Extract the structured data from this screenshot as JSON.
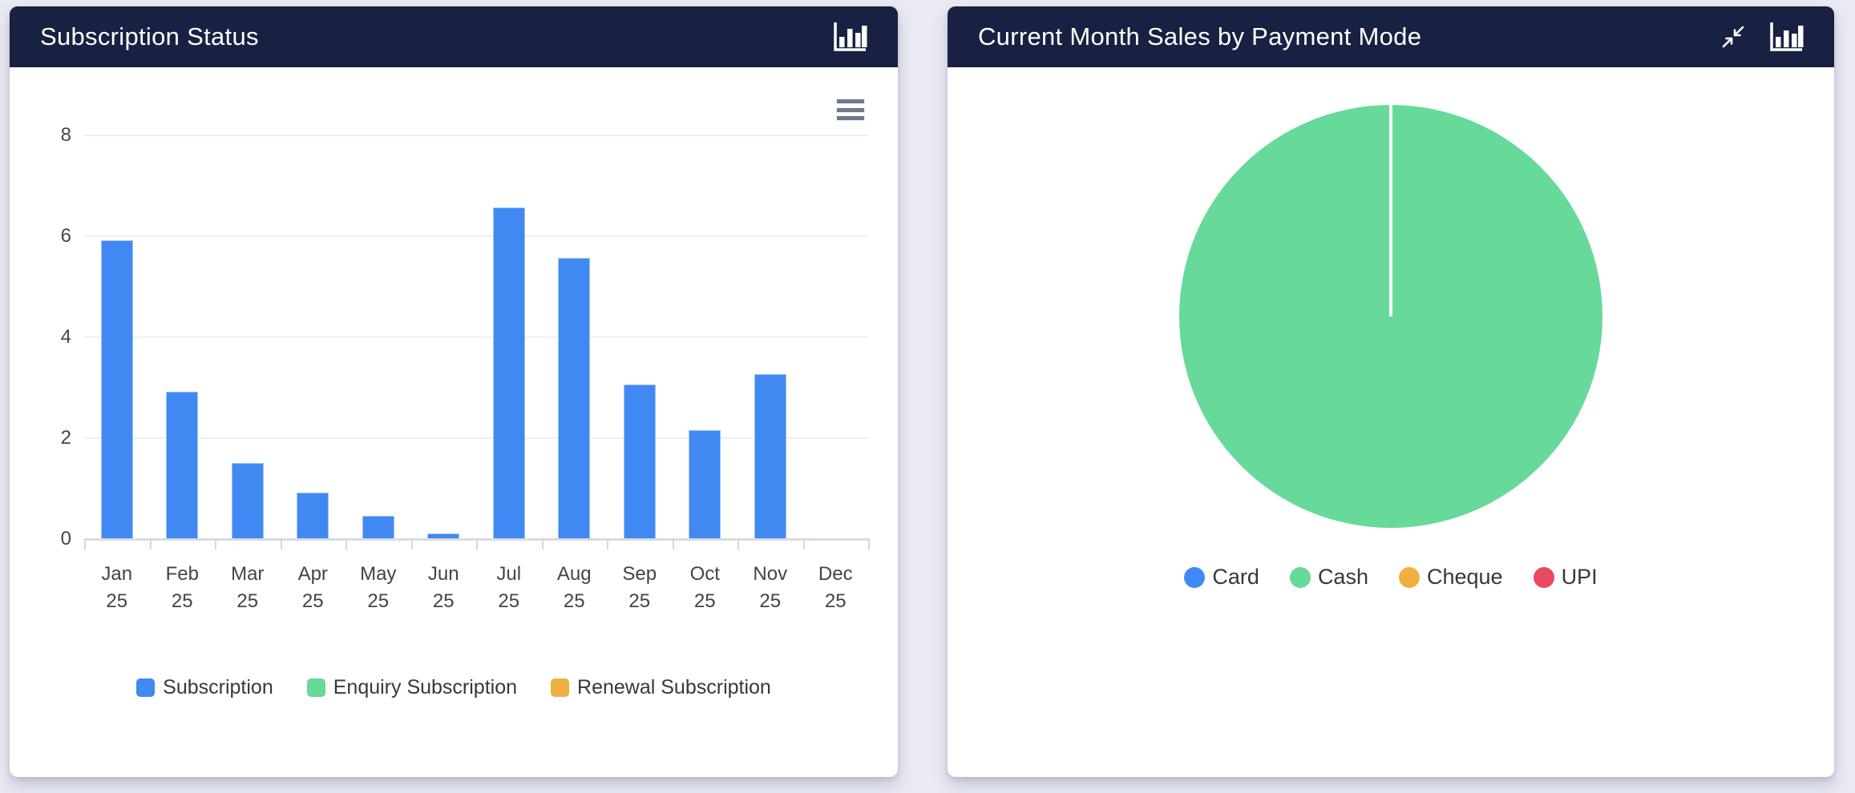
{
  "left_card": {
    "title": "Subscription Status"
  },
  "right_card": {
    "title": "Current Month Sales by Payment Mode"
  },
  "chart_data": [
    {
      "id": "subscription_status",
      "type": "bar",
      "title": "Subscription Status",
      "categories": [
        "Jan 25",
        "Feb 25",
        "Mar 25",
        "Apr 25",
        "May 25",
        "Jun 25",
        "Jul 25",
        "Aug 25",
        "Sep 25",
        "Oct 25",
        "Nov 25",
        "Dec 25"
      ],
      "series": [
        {
          "name": "Subscription",
          "color": "#4189F2",
          "values": [
            5.9,
            2.9,
            1.5,
            0.9,
            0.45,
            0.1,
            6.55,
            5.55,
            3.05,
            2.15,
            3.25,
            0
          ]
        },
        {
          "name": "Enquiry Subscription",
          "color": "#66D99B",
          "values": [
            0,
            0,
            0,
            0,
            0,
            0,
            0,
            0,
            0,
            0,
            0,
            0
          ]
        },
        {
          "name": "Renewal Subscription",
          "color": "#EFB041",
          "values": [
            0,
            0,
            0,
            0,
            0,
            0,
            0,
            0,
            0,
            0,
            0,
            0
          ]
        }
      ],
      "xlabel": "",
      "ylabel": "",
      "ylim": [
        0,
        8
      ],
      "yticks": [
        0,
        2,
        4,
        6,
        8
      ],
      "grid": true,
      "legend_position": "bottom"
    },
    {
      "id": "payment_mode_pie",
      "type": "pie",
      "title": "Current Month Sales by Payment Mode",
      "labels": [
        "Card",
        "Cash",
        "Cheque",
        "UPI"
      ],
      "values": [
        0,
        100,
        0,
        0
      ],
      "colors": [
        "#4189F2",
        "#66D99B",
        "#EFB041",
        "#E8495F"
      ],
      "slice_divider_color": "#FFFFFF",
      "legend_position": "bottom"
    }
  ],
  "icons": {
    "left_header": [
      "column-chart-icon"
    ],
    "right_header": [
      "compress-icon",
      "column-chart-icon"
    ],
    "bar_chart_menu": "hamburger-menu-icon"
  },
  "colors": {
    "page_background": "#E9EAF2",
    "card_background": "#FFFFFF",
    "header_background": "#182142",
    "header_text": "#FFFFFF",
    "gridline": "#EEEFF6",
    "axis_line": "#D9DBE1",
    "axis_text": "#42464D",
    "legend_text": "#34393D"
  }
}
